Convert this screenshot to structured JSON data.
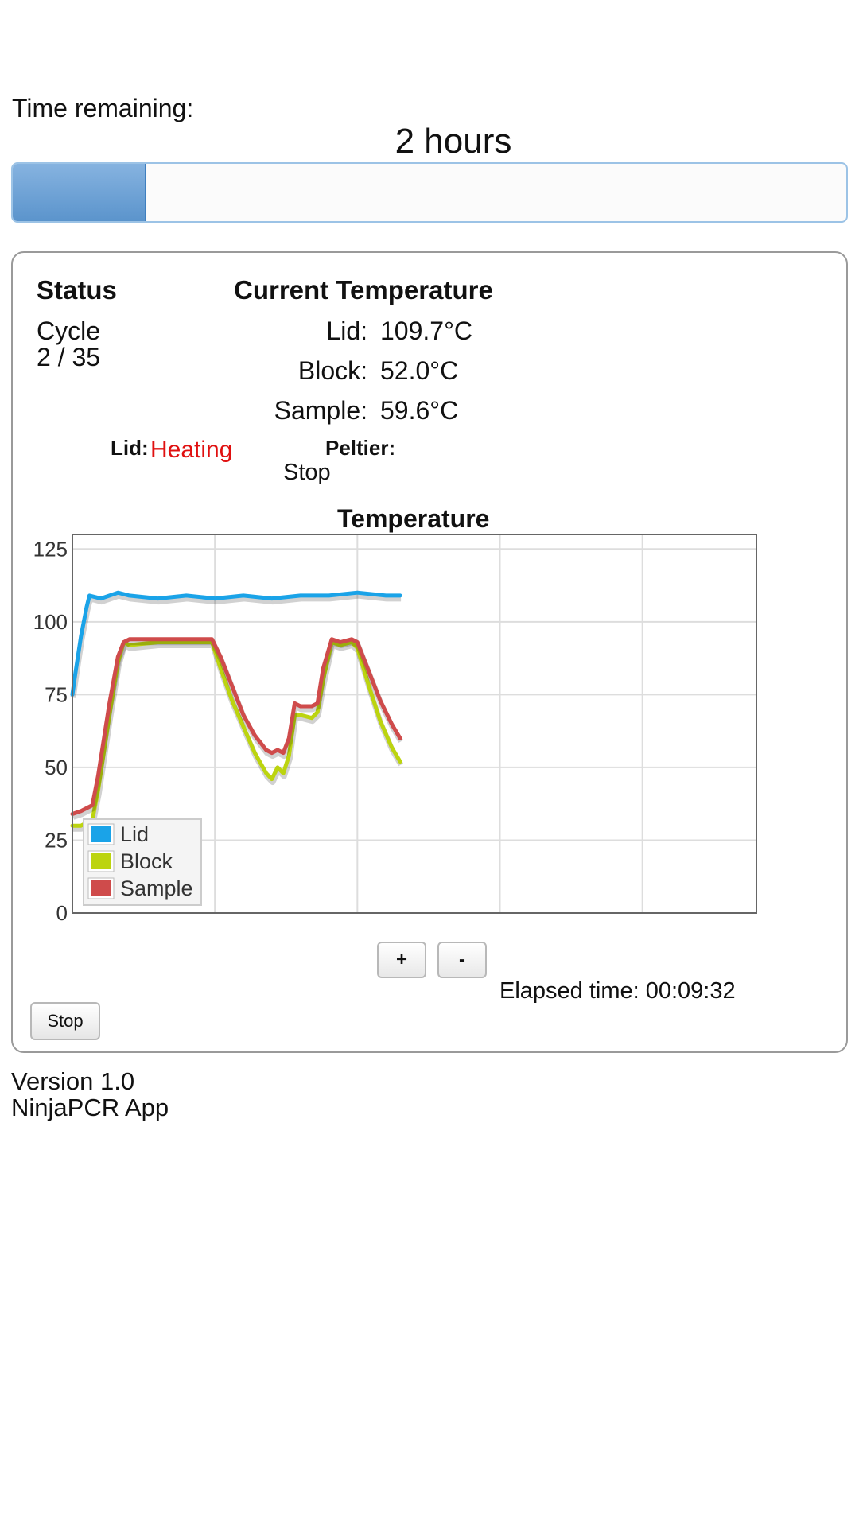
{
  "progress": {
    "label": "Time remaining:",
    "value": "2 hours",
    "fraction": 0.16
  },
  "status": {
    "title": "Status",
    "cycle_label": "Cycle",
    "cycle_value": "2 / 35"
  },
  "current_temperature": {
    "title": "Current Temperature",
    "rows": [
      {
        "label": "Lid:",
        "value": "109.7°C"
      },
      {
        "label": "Block:",
        "value": "52.0°C"
      },
      {
        "label": "Sample:",
        "value": "59.6°C"
      }
    ]
  },
  "lid_state": {
    "label": "Lid:",
    "value": "Heating",
    "color": "#e01010"
  },
  "peltier_state": {
    "label": "Peltier:",
    "value": "Stop"
  },
  "chart_data": {
    "type": "line",
    "title": "Temperature",
    "xlabel": "",
    "ylabel": "",
    "xlim": [
      0,
      1200
    ],
    "ylim": [
      0,
      130
    ],
    "xticks": [
      0,
      250,
      500,
      750,
      1000
    ],
    "yticks": [
      0,
      25,
      50,
      75,
      100,
      125
    ],
    "grid": true,
    "legend_position": "bottom-left",
    "series": [
      {
        "name": "Lid",
        "color": "#1aa3e8",
        "points": [
          [
            0,
            75
          ],
          [
            5,
            82
          ],
          [
            15,
            95
          ],
          [
            25,
            105
          ],
          [
            30,
            109
          ],
          [
            50,
            108
          ],
          [
            80,
            110
          ],
          [
            100,
            109
          ],
          [
            150,
            108
          ],
          [
            200,
            109
          ],
          [
            250,
            108
          ],
          [
            300,
            109
          ],
          [
            350,
            108
          ],
          [
            400,
            109
          ],
          [
            450,
            109
          ],
          [
            500,
            110
          ],
          [
            550,
            109
          ],
          [
            575,
            109
          ]
        ]
      },
      {
        "name": "Block",
        "color": "#bcd40f",
        "points": [
          [
            0,
            30
          ],
          [
            15,
            30
          ],
          [
            35,
            32
          ],
          [
            45,
            42
          ],
          [
            65,
            68
          ],
          [
            80,
            86
          ],
          [
            90,
            93
          ],
          [
            100,
            92
          ],
          [
            150,
            93
          ],
          [
            200,
            93
          ],
          [
            245,
            93
          ],
          [
            260,
            84
          ],
          [
            280,
            73
          ],
          [
            300,
            64
          ],
          [
            320,
            55
          ],
          [
            340,
            48
          ],
          [
            350,
            46
          ],
          [
            360,
            50
          ],
          [
            370,
            48
          ],
          [
            380,
            54
          ],
          [
            390,
            68
          ],
          [
            400,
            68
          ],
          [
            420,
            67
          ],
          [
            430,
            69
          ],
          [
            440,
            80
          ],
          [
            455,
            93
          ],
          [
            470,
            92
          ],
          [
            490,
            93
          ],
          [
            500,
            91
          ],
          [
            520,
            78
          ],
          [
            540,
            66
          ],
          [
            560,
            57
          ],
          [
            575,
            52
          ]
        ]
      },
      {
        "name": "Sample",
        "color": "#cf4b4b",
        "points": [
          [
            0,
            34
          ],
          [
            15,
            35
          ],
          [
            35,
            37
          ],
          [
            45,
            47
          ],
          [
            65,
            72
          ],
          [
            80,
            88
          ],
          [
            90,
            93
          ],
          [
            100,
            94
          ],
          [
            150,
            94
          ],
          [
            200,
            94
          ],
          [
            245,
            94
          ],
          [
            260,
            88
          ],
          [
            280,
            78
          ],
          [
            300,
            68
          ],
          [
            320,
            61
          ],
          [
            340,
            56
          ],
          [
            350,
            55
          ],
          [
            360,
            56
          ],
          [
            370,
            55
          ],
          [
            380,
            60
          ],
          [
            390,
            72
          ],
          [
            400,
            71
          ],
          [
            420,
            71
          ],
          [
            430,
            72
          ],
          [
            440,
            84
          ],
          [
            455,
            94
          ],
          [
            470,
            93
          ],
          [
            490,
            94
          ],
          [
            500,
            93
          ],
          [
            520,
            83
          ],
          [
            540,
            73
          ],
          [
            560,
            65
          ],
          [
            575,
            60
          ]
        ]
      }
    ]
  },
  "zoom": {
    "in_label": "+",
    "out_label": "-"
  },
  "elapsed": {
    "label": "Elapsed time:",
    "value": "00:09:32"
  },
  "stop_button": {
    "label": "Stop"
  },
  "footer": {
    "version": "Version 1.0",
    "app": "NinjaPCR App"
  }
}
